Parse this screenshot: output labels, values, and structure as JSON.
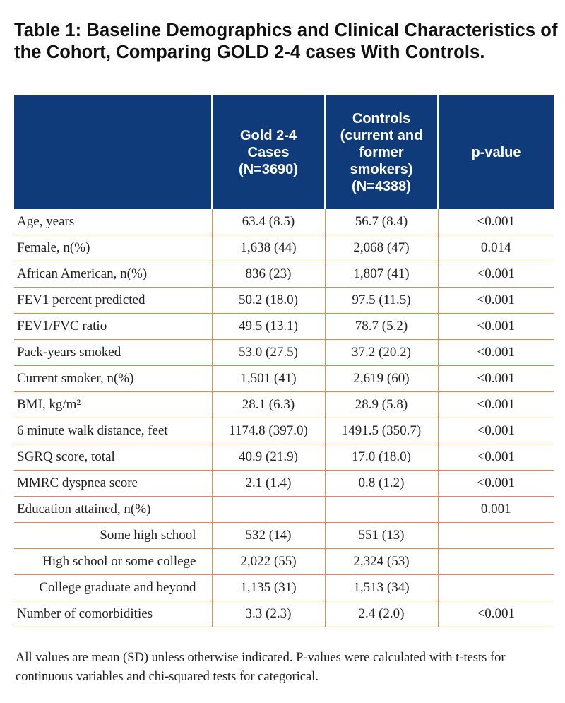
{
  "title": "Table 1: Baseline Demographics and Clinical Characteristics of the Cohort, Comparing GOLD 2-4 cases With Controls.",
  "header": {
    "col0": "",
    "col1_lines": [
      "Gold 2-4",
      "Cases",
      "(N=3690)"
    ],
    "col2_lines": [
      "Controls",
      "(current and",
      "former",
      "smokers)",
      "(N=4388)"
    ],
    "col3": "p-value"
  },
  "rows": [
    {
      "label": "Age, years",
      "cases": "63.4 (8.5)",
      "controls": "56.7 (8.4)",
      "p": "<0.001",
      "indent": false
    },
    {
      "label": "Female, n(%)",
      "cases": "1,638 (44)",
      "controls": "2,068 (47)",
      "p": "0.014",
      "indent": false
    },
    {
      "label": "African American, n(%)",
      "cases": "836 (23)",
      "controls": "1,807 (41)",
      "p": "<0.001",
      "indent": false
    },
    {
      "label": "FEV1 percent predicted",
      "cases": "50.2 (18.0)",
      "controls": "97.5 (11.5)",
      "p": "<0.001",
      "indent": false
    },
    {
      "label": "FEV1/FVC ratio",
      "cases": "49.5 (13.1)",
      "controls": "78.7 (5.2)",
      "p": "<0.001",
      "indent": false
    },
    {
      "label": "Pack-years smoked",
      "cases": "53.0 (27.5)",
      "controls": "37.2 (20.2)",
      "p": "<0.001",
      "indent": false
    },
    {
      "label": "Current smoker, n(%)",
      "cases": "1,501 (41)",
      "controls": "2,619 (60)",
      "p": "<0.001",
      "indent": false
    },
    {
      "label": "BMI, kg/m²",
      "cases": "28.1 (6.3)",
      "controls": "28.9 (5.8)",
      "p": "<0.001",
      "indent": false
    },
    {
      "label": "6 minute walk distance, feet",
      "cases": "1174.8 (397.0)",
      "controls": "1491.5 (350.7)",
      "p": "<0.001",
      "indent": false
    },
    {
      "label": "SGRQ score, total",
      "cases": "40.9 (21.9)",
      "controls": "17.0 (18.0)",
      "p": "<0.001",
      "indent": false
    },
    {
      "label": "MMRC dyspnea score",
      "cases": "2.1 (1.4)",
      "controls": "0.8 (1.2)",
      "p": "<0.001",
      "indent": false
    },
    {
      "label": "Education attained, n(%)",
      "cases": "",
      "controls": "",
      "p": "0.001",
      "indent": false
    },
    {
      "label": "Some high school",
      "cases": "532 (14)",
      "controls": "551 (13)",
      "p": "",
      "indent": true
    },
    {
      "label": "High school or some college",
      "cases": "2,022 (55)",
      "controls": "2,324 (53)",
      "p": "",
      "indent": true
    },
    {
      "label": "College graduate and beyond",
      "cases": "1,135 (31)",
      "controls": "1,513 (34)",
      "p": "",
      "indent": true
    },
    {
      "label": "Number of comorbidities",
      "cases": "3.3 (2.3)",
      "controls": "2.4 (2.0)",
      "p": "<0.001",
      "indent": false
    }
  ],
  "footnote": "All values are mean (SD) unless otherwise indicated.  P-values were calculated with t-tests for continuous variables and chi-squared tests for categorical.",
  "colors": {
    "header_bg": "#0f3b7a",
    "rule": "#e8874a"
  }
}
